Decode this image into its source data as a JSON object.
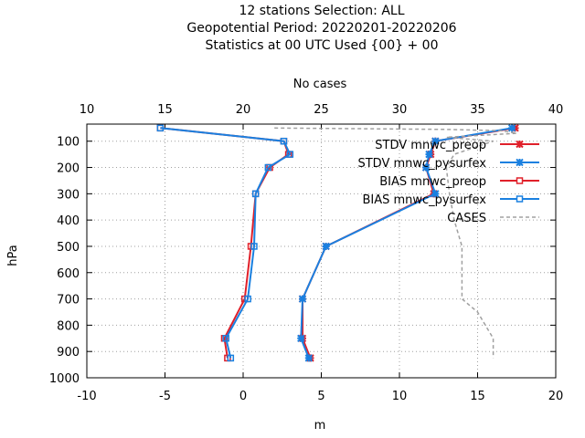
{
  "title": {
    "line1": "12 stations Selection: ALL",
    "line2": "Geopotential  Period: 20220201-20220206",
    "line3": "Statistics at 00 UTC  Used {00} + 00"
  },
  "chart_data": {
    "type": "line",
    "xlabel": "m",
    "ylabel": "hPa",
    "x2label": "No cases",
    "xlim": [
      -10,
      20
    ],
    "ylim": [
      1000,
      35
    ],
    "x2lim": [
      10,
      40
    ],
    "xticks": [
      "-10",
      "-5",
      "0",
      "5",
      "10",
      "15",
      "20"
    ],
    "x2ticks": [
      "10",
      "15",
      "20",
      "25",
      "30",
      "35",
      "40"
    ],
    "yticks": [
      "100",
      "200",
      "300",
      "400",
      "500",
      "600",
      "700",
      "800",
      "900",
      "1000"
    ],
    "grid": true,
    "legend_position": "top-right",
    "series": [
      {
        "name": "STDV mnwc_preop",
        "color": "#e0202a",
        "marker": "x-star",
        "axis": "x",
        "points": [
          {
            "x": 17.4,
            "y": 50
          },
          {
            "x": 12.3,
            "y": 100
          },
          {
            "x": 12.0,
            "y": 150
          },
          {
            "x": 11.7,
            "y": 200
          },
          {
            "x": 12.2,
            "y": 300
          },
          {
            "x": 5.3,
            "y": 500
          },
          {
            "x": 3.8,
            "y": 700
          },
          {
            "x": 3.8,
            "y": 850
          },
          {
            "x": 4.3,
            "y": 925
          }
        ]
      },
      {
        "name": "STDV mnwc_pysurfex",
        "color": "#1a80e0",
        "marker": "x-star",
        "axis": "x",
        "points": [
          {
            "x": 17.2,
            "y": 50
          },
          {
            "x": 12.3,
            "y": 100
          },
          {
            "x": 11.9,
            "y": 150
          },
          {
            "x": 11.7,
            "y": 200
          },
          {
            "x": 12.3,
            "y": 300
          },
          {
            "x": 5.3,
            "y": 500
          },
          {
            "x": 3.8,
            "y": 700
          },
          {
            "x": 3.7,
            "y": 850
          },
          {
            "x": 4.2,
            "y": 925
          }
        ]
      },
      {
        "name": "BIAS mnwc_preop",
        "color": "#e0202a",
        "marker": "square",
        "axis": "x",
        "points": [
          {
            "x": -5.3,
            "y": 50
          },
          {
            "x": 2.6,
            "y": 100
          },
          {
            "x": 2.9,
            "y": 150
          },
          {
            "x": 1.7,
            "y": 200
          },
          {
            "x": 0.8,
            "y": 300
          },
          {
            "x": 0.5,
            "y": 500
          },
          {
            "x": 0.1,
            "y": 700
          },
          {
            "x": -1.2,
            "y": 850
          },
          {
            "x": -1.0,
            "y": 925
          }
        ]
      },
      {
        "name": "BIAS mnwc_pysurfex",
        "color": "#1a80e0",
        "marker": "square",
        "axis": "x",
        "points": [
          {
            "x": -5.3,
            "y": 50
          },
          {
            "x": 2.6,
            "y": 100
          },
          {
            "x": 3.0,
            "y": 150
          },
          {
            "x": 1.6,
            "y": 200
          },
          {
            "x": 0.8,
            "y": 300
          },
          {
            "x": 0.7,
            "y": 500
          },
          {
            "x": 0.3,
            "y": 700
          },
          {
            "x": -1.1,
            "y": 850
          },
          {
            "x": -0.8,
            "y": 925
          }
        ]
      },
      {
        "name": "CASES",
        "color": "#a0a0a0",
        "marker": "none",
        "dashed": true,
        "axis": "x2",
        "points": [
          {
            "x": 22.0,
            "y": 50
          },
          {
            "x": 33.0,
            "y": 55
          },
          {
            "x": 36.5,
            "y": 60
          },
          {
            "x": 37.5,
            "y": 70
          },
          {
            "x": 33.0,
            "y": 85
          },
          {
            "x": 36.0,
            "y": 100
          },
          {
            "x": 35.0,
            "y": 120
          },
          {
            "x": 33.5,
            "y": 150
          },
          {
            "x": 33.0,
            "y": 200
          },
          {
            "x": 33.2,
            "y": 300
          },
          {
            "x": 33.5,
            "y": 400
          },
          {
            "x": 34.0,
            "y": 500
          },
          {
            "x": 34.0,
            "y": 600
          },
          {
            "x": 34.0,
            "y": 700
          },
          {
            "x": 35.0,
            "y": 750
          },
          {
            "x": 35.5,
            "y": 800
          },
          {
            "x": 36.0,
            "y": 850
          },
          {
            "x": 36.0,
            "y": 925
          }
        ]
      }
    ]
  }
}
